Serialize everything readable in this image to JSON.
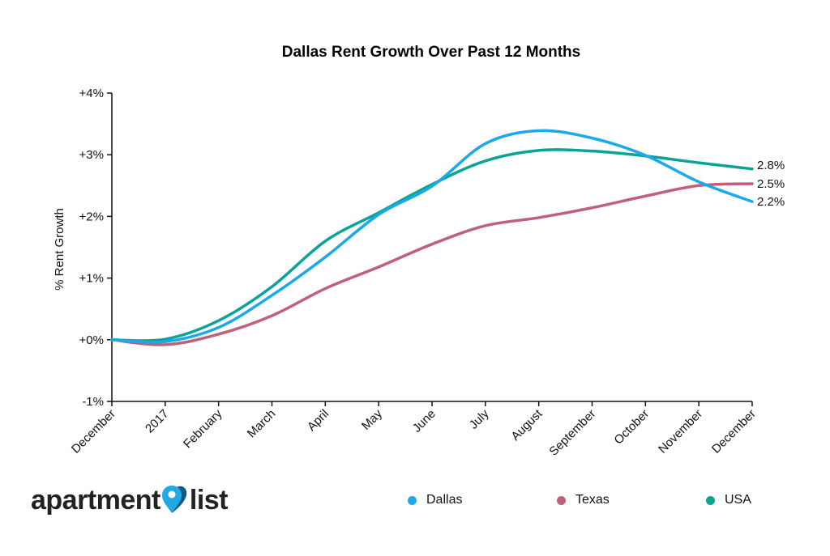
{
  "chart_data": {
    "type": "line",
    "title": "Dallas Rent Growth Over Past 12 Months",
    "xlabel": "",
    "ylabel": "% Rent Growth",
    "categories": [
      "December",
      "2017",
      "February",
      "March",
      "April",
      "May",
      "June",
      "July",
      "August",
      "September",
      "October",
      "November",
      "December"
    ],
    "yticks": [
      "-1%",
      "+0%",
      "+1%",
      "+2%",
      "+3%",
      "+4%"
    ],
    "ylim": [
      -1,
      4
    ],
    "grid": false,
    "legend": "bottom",
    "series": [
      {
        "name": "Dallas",
        "color": "#1ba8ec",
        "values": [
          0,
          -0.03,
          0.2,
          0.72,
          1.34,
          2.03,
          2.49,
          3.18,
          3.39,
          3.27,
          2.99,
          2.56,
          2.24
        ],
        "end_label": "2.2%"
      },
      {
        "name": "Texas",
        "color": "#c06079",
        "values": [
          0,
          -0.08,
          0.09,
          0.39,
          0.83,
          1.18,
          1.55,
          1.85,
          1.98,
          2.14,
          2.33,
          2.5,
          2.53
        ],
        "end_label": "2.5%"
      },
      {
        "name": "USA",
        "color": "#0aa496",
        "values": [
          0,
          0.01,
          0.31,
          0.86,
          1.6,
          2.06,
          2.52,
          2.9,
          3.07,
          3.06,
          2.98,
          2.87,
          2.77
        ],
        "end_label": "2.8%"
      }
    ]
  },
  "logo": {
    "text_left": "apartment",
    "text_right": "list"
  }
}
